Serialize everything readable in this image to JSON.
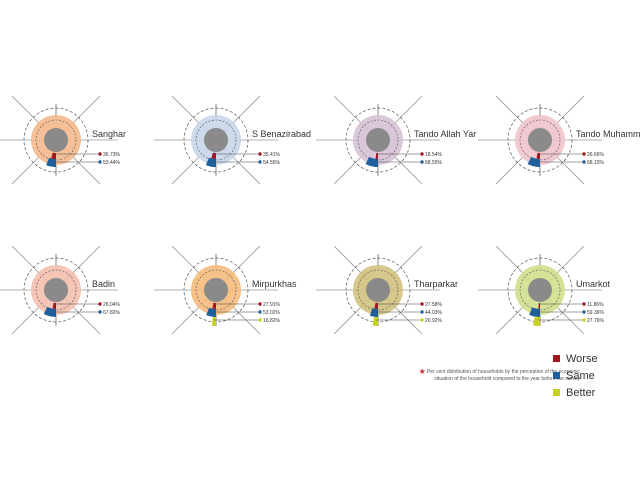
{
  "colors": {
    "worse": "#a3141e",
    "same": "#1f5f9c",
    "better": "#c8d21e",
    "axis_line": "#999999",
    "core": "#8a8a8a"
  },
  "legend": {
    "items": [
      {
        "key": "worse",
        "label": "Worse"
      },
      {
        "key": "same",
        "label": "Same"
      },
      {
        "key": "better",
        "label": "Better"
      }
    ]
  },
  "footnote": {
    "star": "★",
    "line1": "Per cent distribution of households by the perception of the economic",
    "line2": "situation of the household compared to the year before the survey"
  },
  "chart_data": [
    {
      "type": "radial",
      "title": "Sanghar",
      "fill": "#f4b98c",
      "series": [
        {
          "key": "worse",
          "value": 36.73,
          "label": "36.73%"
        },
        {
          "key": "same",
          "value": 53.44,
          "label": "53.44%"
        }
      ]
    },
    {
      "type": "radial",
      "title": "S Benazirabad",
      "fill": "#c7d6ea",
      "series": [
        {
          "key": "worse",
          "value": 35.41,
          "label": "35.41%"
        },
        {
          "key": "same",
          "value": 54.55,
          "label": "54.55%"
        }
      ]
    },
    {
      "type": "radial",
      "title": "Tando Allah Yar",
      "fill": "#d6c2d6",
      "series": [
        {
          "key": "worse",
          "value": 18.54,
          "label": "18.54%"
        },
        {
          "key": "same",
          "value": 68.55,
          "label": "68.55%"
        }
      ]
    },
    {
      "type": "radial",
      "title": "Tando Muhammad Khan",
      "fill": "#efc3cc",
      "series": [
        {
          "key": "worse",
          "value": 26.66,
          "label": "26.66%"
        },
        {
          "key": "same",
          "value": 68.15,
          "label": "68.15%"
        }
      ]
    },
    {
      "type": "radial",
      "title": "Badin",
      "fill": "#f4c0ae",
      "series": [
        {
          "key": "worse",
          "value": 26.04,
          "label": "26.04%"
        },
        {
          "key": "same",
          "value": 67.82,
          "label": "67.82%"
        }
      ]
    },
    {
      "type": "radial",
      "title": "Mirpurkhas",
      "fill": "#f6bb7c",
      "series": [
        {
          "key": "worse",
          "value": 27.91,
          "label": "27.91%"
        },
        {
          "key": "same",
          "value": 53.02,
          "label": "53.02%"
        },
        {
          "key": "better",
          "value": 16.82,
          "label": "16.82%"
        }
      ]
    },
    {
      "type": "radial",
      "title": "Tharparkar",
      "fill": "#d2c27e",
      "series": [
        {
          "key": "worse",
          "value": 27.58,
          "label": "27.58%"
        },
        {
          "key": "same",
          "value": 44.03,
          "label": "44.03%"
        },
        {
          "key": "better",
          "value": 20.92,
          "label": "20.92%"
        }
      ]
    },
    {
      "type": "radial",
      "title": "Umarkot",
      "fill": "#cfe08c",
      "series": [
        {
          "key": "worse",
          "value": 11.86,
          "label": "11.86%"
        },
        {
          "key": "same",
          "value": 59.36,
          "label": "59.36%"
        },
        {
          "key": "better",
          "value": 27.76,
          "label": "27.76%"
        }
      ]
    }
  ]
}
